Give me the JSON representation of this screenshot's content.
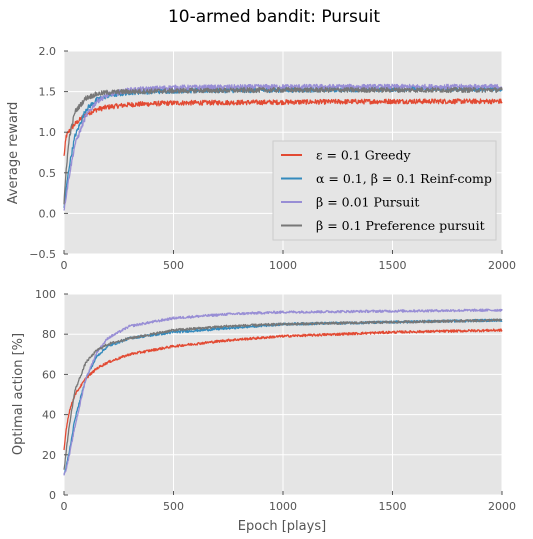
{
  "figure_title": "10-armed bandit: Pursuit",
  "chart_data": [
    {
      "type": "line",
      "ylabel": "Average reward",
      "xlabel": "",
      "xlim": [
        0,
        2000
      ],
      "ylim": [
        -0.5,
        2.0
      ],
      "xticks": [
        "0",
        "500",
        "1000",
        "1500",
        "2000"
      ],
      "yticks": [
        "−0.5",
        "0.0",
        "0.5",
        "1.0",
        "1.5",
        "2.0"
      ],
      "grid": true,
      "legend_position": "lower-right",
      "series": [
        {
          "name": "ε = 0.1 Greedy",
          "color": "#E24A33",
          "x": [
            0,
            10,
            25,
            50,
            100,
            150,
            200,
            300,
            500,
            1000,
            1500,
            2000
          ],
          "values": [
            0.7,
            0.95,
            1.02,
            1.1,
            1.22,
            1.28,
            1.31,
            1.34,
            1.36,
            1.37,
            1.38,
            1.38
          ]
        },
        {
          "name": "α = 0.1, β = 0.1 Reinf-comp",
          "color": "#348ABD",
          "x": [
            0,
            10,
            25,
            50,
            100,
            150,
            200,
            300,
            500,
            1000,
            1500,
            2000
          ],
          "values": [
            0.05,
            0.3,
            0.6,
            0.95,
            1.28,
            1.4,
            1.45,
            1.49,
            1.51,
            1.52,
            1.53,
            1.53
          ]
        },
        {
          "name": "β = 0.01 Pursuit",
          "color": "#988ED5",
          "x": [
            0,
            10,
            25,
            50,
            100,
            150,
            200,
            300,
            500,
            1000,
            1500,
            2000
          ],
          "values": [
            0.05,
            0.22,
            0.48,
            0.85,
            1.2,
            1.38,
            1.46,
            1.52,
            1.55,
            1.56,
            1.56,
            1.56
          ]
        },
        {
          "name": "β = 0.1 Preference pursuit",
          "color": "#777777",
          "x": [
            0,
            10,
            25,
            50,
            100,
            150,
            200,
            300,
            500,
            1000,
            1500,
            2000
          ],
          "values": [
            0.1,
            0.55,
            0.95,
            1.25,
            1.42,
            1.47,
            1.49,
            1.5,
            1.51,
            1.52,
            1.52,
            1.52
          ]
        }
      ]
    },
    {
      "type": "line",
      "ylabel": "Optimal action [%]",
      "xlabel": "Epoch [plays]",
      "xlim": [
        0,
        2000
      ],
      "ylim": [
        0,
        100
      ],
      "xticks": [
        "0",
        "500",
        "1000",
        "1500",
        "2000"
      ],
      "yticks": [
        "0",
        "20",
        "40",
        "60",
        "80",
        "100"
      ],
      "grid": true,
      "series": [
        {
          "name": "ε = 0.1 Greedy",
          "color": "#E24A33",
          "x": [
            0,
            10,
            25,
            50,
            100,
            150,
            200,
            300,
            500,
            750,
            1000,
            1500,
            2000
          ],
          "values": [
            22,
            33,
            42,
            50,
            58,
            63,
            66,
            70,
            74,
            77,
            79,
            81,
            82
          ]
        },
        {
          "name": "α = 0.1, β = 0.1 Reinf-comp",
          "color": "#348ABD",
          "x": [
            0,
            10,
            25,
            50,
            100,
            150,
            200,
            300,
            500,
            750,
            1000,
            1500,
            2000
          ],
          "values": [
            10,
            14,
            22,
            38,
            58,
            69,
            74,
            78,
            81,
            83,
            85,
            86,
            87
          ]
        },
        {
          "name": "β = 0.01 Pursuit",
          "color": "#988ED5",
          "x": [
            0,
            10,
            25,
            50,
            100,
            150,
            200,
            300,
            500,
            750,
            1000,
            1500,
            2000
          ],
          "values": [
            10,
            13,
            20,
            34,
            58,
            71,
            78,
            84,
            88,
            90,
            91,
            91.5,
            92
          ]
        },
        {
          "name": "β = 0.1 Preference pursuit",
          "color": "#777777",
          "x": [
            0,
            10,
            25,
            50,
            100,
            150,
            200,
            300,
            500,
            750,
            1000,
            1500,
            2000
          ],
          "values": [
            12,
            22,
            35,
            52,
            66,
            72,
            75,
            78,
            82,
            84,
            85,
            86,
            87
          ]
        }
      ]
    }
  ]
}
